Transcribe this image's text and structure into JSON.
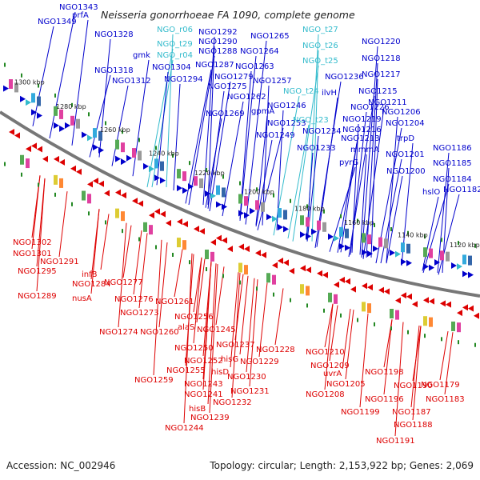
{
  "title": "Neisseria gonorrhoeae FA 1090, complete genome",
  "footer": {
    "accession": "Accession: NC_002946",
    "summary": "Topology: circular; Length: 2,153,922 bp; Genes: 2,069"
  },
  "colors": {
    "forward_gene": "#0000cc",
    "trna": "#33bbcc",
    "reverse_gene": "#dd0000",
    "backbone": "#777777",
    "marker": "#228822"
  },
  "ticks": [
    "1300 kbp",
    "1280 kbp",
    "1260 kbp",
    "1240 kbp",
    "1220 kbp",
    "1200 kbp",
    "1180 kbp",
    "1160 kbp",
    "1140 kbp",
    "1120 kbp"
  ],
  "labels_top": [
    {
      "text": "NGO1343",
      "type": "gene"
    },
    {
      "text": "NGO1349",
      "type": "gene"
    },
    {
      "text": "prfA",
      "type": "gene"
    },
    {
      "text": "NGO1328",
      "type": "gene"
    },
    {
      "text": "NGO_r06",
      "type": "rna"
    },
    {
      "text": "NGO_t29",
      "type": "rna"
    },
    {
      "text": "NGO_r04",
      "type": "rna"
    },
    {
      "text": "gmk",
      "type": "gene"
    },
    {
      "text": "NGO1292",
      "type": "gene"
    },
    {
      "text": "NGO1290",
      "type": "gene"
    },
    {
      "text": "NGO1288",
      "type": "gene"
    },
    {
      "text": "NGO1265",
      "type": "gene"
    },
    {
      "text": "NGO1264",
      "type": "gene"
    },
    {
      "text": "NGO_t27",
      "type": "rna"
    },
    {
      "text": "NGO_t26",
      "type": "rna"
    },
    {
      "text": "NGO_t25",
      "type": "rna"
    },
    {
      "text": "NGO1318",
      "type": "gene"
    },
    {
      "text": "NGO1312",
      "type": "gene"
    },
    {
      "text": "NGO1304",
      "type": "gene"
    },
    {
      "text": "NGO1294",
      "type": "gene"
    },
    {
      "text": "NGO1287",
      "type": "gene"
    },
    {
      "text": "NGO1279",
      "type": "gene"
    },
    {
      "text": "NGO1275",
      "type": "gene"
    },
    {
      "text": "NGO1263",
      "type": "gene"
    },
    {
      "text": "NGO1257",
      "type": "gene"
    },
    {
      "text": "NGO_t24",
      "type": "rna"
    },
    {
      "text": "NGO1262",
      "type": "gene"
    },
    {
      "text": "NGO1269",
      "type": "gene"
    },
    {
      "text": "gpmA",
      "type": "gene"
    },
    {
      "text": "NGO1246",
      "type": "gene"
    },
    {
      "text": "NGO1253",
      "type": "gene"
    },
    {
      "text": "NGO_t23",
      "type": "rna"
    },
    {
      "text": "NGO1249",
      "type": "gene"
    },
    {
      "text": "NGO1234",
      "type": "gene"
    },
    {
      "text": "NGO1233",
      "type": "gene"
    },
    {
      "text": "NGO1236",
      "type": "gene"
    },
    {
      "text": "ilvH",
      "type": "gene"
    },
    {
      "text": "NGO1220",
      "type": "gene"
    },
    {
      "text": "NGO1218",
      "type": "gene"
    },
    {
      "text": "NGO1217",
      "type": "gene"
    },
    {
      "text": "NGO1215",
      "type": "gene"
    },
    {
      "text": "NGO1211",
      "type": "gene"
    },
    {
      "text": "NGO1226",
      "type": "gene"
    },
    {
      "text": "NGO1206",
      "type": "gene"
    },
    {
      "text": "NGO1219",
      "type": "gene"
    },
    {
      "text": "NGO1204",
      "type": "gene"
    },
    {
      "text": "NGO1216",
      "type": "gene"
    },
    {
      "text": "NGO1213",
      "type": "gene"
    },
    {
      "text": "trpD",
      "type": "gene"
    },
    {
      "text": "mmmA",
      "type": "gene"
    },
    {
      "text": "pyrG",
      "type": "gene"
    },
    {
      "text": "NGO1201",
      "type": "gene"
    },
    {
      "text": "NGO1200",
      "type": "gene"
    },
    {
      "text": "NGO1186",
      "type": "gene"
    },
    {
      "text": "NGO1185",
      "type": "gene"
    },
    {
      "text": "NGO1184",
      "type": "gene"
    },
    {
      "text": "NGO1182",
      "type": "gene"
    },
    {
      "text": "hslO",
      "type": "gene"
    }
  ],
  "labels_bottom": [
    "NGO1302",
    "NGO1301",
    "NGO1291",
    "NGO1295",
    "infB",
    "NGO1284",
    "NGO1289",
    "nusA",
    "NGO1277",
    "NGO1276",
    "NGO1273",
    "NGO1274",
    "NGO1261",
    "NGO1256",
    "NGO1260",
    "alaS",
    "NGO1245",
    "NGO1250",
    "NGO1237",
    "NGO1228",
    "NGO1252",
    "hisG",
    "NGO1229",
    "NGO1255",
    "hisD",
    "NGO1230",
    "NGO1259",
    "NGO1243",
    "NGO1231",
    "NGO1241",
    "NGO1232",
    "hisB",
    "NGO1239",
    "NGO1244",
    "NGO1210",
    "NGO1209",
    "uvrA",
    "NGO1205",
    "NGO1208",
    "NGO1198",
    "NGO1199",
    "NGO1190",
    "NGO1179",
    "NGO1196",
    "NGO1183",
    "NGO1187",
    "NGO1188",
    "NGO1191"
  ]
}
